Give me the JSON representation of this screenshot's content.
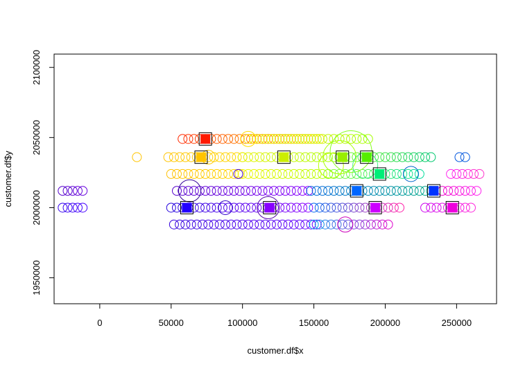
{
  "chart_data": {
    "type": "scatter",
    "title": "",
    "xlabel": "customer.df$x",
    "ylabel": "customer.df$y",
    "xlim": [
      -32000,
      278000
    ],
    "ylim": [
      1931500,
      2109500
    ],
    "x_ticks": [
      0,
      50000,
      100000,
      150000,
      200000,
      250000
    ],
    "y_ticks": [
      1950000,
      2000000,
      2050000,
      2100000
    ],
    "x_tick_labels": [
      "0",
      "50000",
      "100000",
      "150000",
      "200000",
      "250000"
    ],
    "y_tick_labels": [
      "1950000",
      "2000000",
      "2050000",
      "2100000"
    ],
    "grid": false,
    "legend": "none",
    "marker": "open-circle",
    "circle_rows": [
      {
        "y": 2049000,
        "x_from": 58000,
        "x_to": 152000,
        "step": 4000,
        "color": "#ff2a00",
        "fade_to": "#ffe600"
      },
      {
        "y": 2049000,
        "x_from": 104000,
        "x_to": 186000,
        "step": 4000,
        "color": "#f5e600",
        "fade_to": "#a6ff00"
      },
      {
        "y": 2036000,
        "x_from": 48000,
        "x_to": 100000,
        "step": 4000,
        "color": "#ffc400",
        "fade_to": "#ffd800"
      },
      {
        "y": 2036000,
        "x_from": 100000,
        "x_to": 168000,
        "step": 4000,
        "color": "#e4f200",
        "fade_to": "#a6ff00"
      },
      {
        "y": 2036000,
        "x_from": 168000,
        "x_to": 230000,
        "step": 4000,
        "color": "#78ff20",
        "fade_to": "#00c86e"
      },
      {
        "y": 2024000,
        "x_from": 50000,
        "x_to": 96000,
        "step": 4000,
        "color": "#ffc000",
        "fade_to": "#ffd800"
      },
      {
        "y": 2024000,
        "x_from": 100000,
        "x_to": 160000,
        "step": 4000,
        "color": "#eef500",
        "fade_to": "#b5ff00"
      },
      {
        "y": 2024000,
        "x_from": 160000,
        "x_to": 222000,
        "step": 4000,
        "color": "#8cff30",
        "fade_to": "#00dd9a"
      },
      {
        "y": 2024000,
        "x_from": 246000,
        "x_to": 266000,
        "step": 4000,
        "color": "#ff22ee",
        "fade_to": "#ff33cc"
      },
      {
        "y": 2012000,
        "x_from": -26000,
        "x_to": -12000,
        "step": 3500,
        "color": "#5500cc",
        "fade_to": "#6600dd"
      },
      {
        "y": 2012000,
        "x_from": 54000,
        "x_to": 144000,
        "step": 4000,
        "color": "#5500cc",
        "fade_to": "#8800ff"
      },
      {
        "y": 2012000,
        "x_from": 148000,
        "x_to": 232000,
        "step": 4000,
        "color": "#0066dd",
        "fade_to": "#00aa88"
      },
      {
        "y": 2012000,
        "x_from": 240000,
        "x_to": 262000,
        "step": 4000,
        "color": "#ee00cc",
        "fade_to": "#ff22ee"
      },
      {
        "y": 2000000,
        "x_from": -26000,
        "x_to": -12000,
        "step": 3500,
        "color": "#3300ee",
        "fade_to": "#4400ff"
      },
      {
        "y": 2000000,
        "x_from": 50000,
        "x_to": 146000,
        "step": 4000,
        "color": "#2200dd",
        "fade_to": "#8800ff"
      },
      {
        "y": 2000000,
        "x_from": 150000,
        "x_to": 208000,
        "step": 4000,
        "color": "#0066ee",
        "fade_to": "#ff22aa"
      },
      {
        "y": 2000000,
        "x_from": 228000,
        "x_to": 260000,
        "step": 4000,
        "color": "#cc00ee",
        "fade_to": "#ff22dd"
      },
      {
        "y": 1988000,
        "x_from": 52000,
        "x_to": 150000,
        "step": 4000,
        "color": "#3300dd",
        "fade_to": "#6600ff"
      },
      {
        "y": 1988000,
        "x_from": 150000,
        "x_to": 200000,
        "step": 4000,
        "color": "#0099ee",
        "fade_to": "#dd00cc"
      }
    ],
    "large_circles": [
      {
        "x": 63000,
        "y": 2012000,
        "r": 16,
        "color": "#330099"
      },
      {
        "x": 118000,
        "y": 2000000,
        "r": 16,
        "color": "#5500aa"
      },
      {
        "x": 168000,
        "y": 2036000,
        "r": 24,
        "color": "#a6ff00"
      },
      {
        "x": 176000,
        "y": 2040000,
        "r": 30,
        "color": "#88ff22"
      },
      {
        "x": 162000,
        "y": 2030000,
        "r": 18,
        "color": "#b5ff00"
      },
      {
        "x": 186000,
        "y": 2030000,
        "r": 18,
        "color": "#44ee88"
      },
      {
        "x": 172000,
        "y": 1988000,
        "r": 11,
        "color": "#cc00bb"
      },
      {
        "x": 218000,
        "y": 2024000,
        "r": 11,
        "color": "#0066cc"
      },
      {
        "x": 76000,
        "y": 2036000,
        "r": 10,
        "color": "#ffcc00"
      },
      {
        "x": 104000,
        "y": 2049000,
        "r": 11,
        "color": "#ffdd00"
      },
      {
        "x": 88000,
        "y": 2000000,
        "r": 10,
        "color": "#3300cc"
      }
    ],
    "extra_points": [
      {
        "x": 26000,
        "y": 2036000,
        "color": "#ffc400"
      },
      {
        "x": 97000,
        "y": 2024000,
        "color": "#4400cc"
      },
      {
        "x": 252000,
        "y": 2036000,
        "color": "#0055dd"
      },
      {
        "x": 256000,
        "y": 2036000,
        "color": "#0055dd"
      }
    ],
    "centroids": [
      {
        "x": 74000,
        "y": 2049000,
        "color": "#ff1a00"
      },
      {
        "x": 71000,
        "y": 2036000,
        "color": "#ffc400"
      },
      {
        "x": 129000,
        "y": 2036000,
        "color": "#ccee00"
      },
      {
        "x": 170000,
        "y": 2036000,
        "color": "#99ee00"
      },
      {
        "x": 187000,
        "y": 2036000,
        "color": "#55ee00"
      },
      {
        "x": 196000,
        "y": 2024000,
        "color": "#00ee77"
      },
      {
        "x": 180000,
        "y": 2012000,
        "color": "#0066ff"
      },
      {
        "x": 234000,
        "y": 2012000,
        "color": "#0033ff"
      },
      {
        "x": 61000,
        "y": 2000000,
        "color": "#2200ff"
      },
      {
        "x": 119000,
        "y": 2000000,
        "color": "#8800ff"
      },
      {
        "x": 193000,
        "y": 2000000,
        "color": "#cc00ff"
      },
      {
        "x": 247000,
        "y": 2000000,
        "color": "#ee00dd"
      }
    ]
  }
}
